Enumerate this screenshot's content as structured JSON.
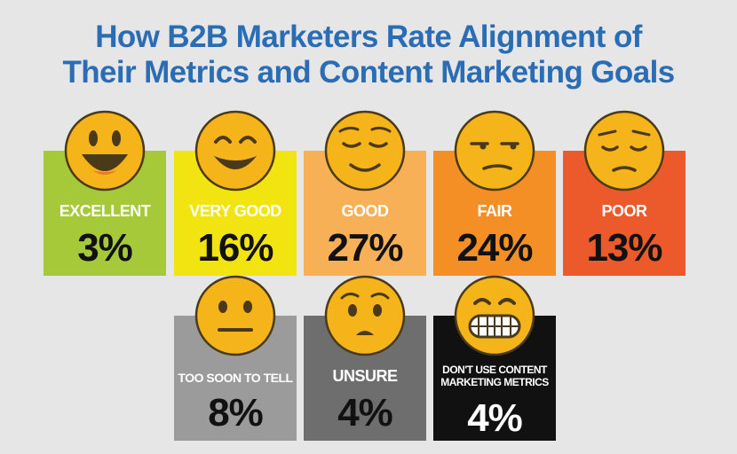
{
  "title_line1": "How B2B Marketers Rate Alignment of",
  "title_line2": "Their Metrics and Content Marketing Goals",
  "colors": {
    "title": "#2a6db5",
    "emoji_fill": "#f4b41a",
    "emoji_stroke": "#4a3a1a"
  },
  "chart_data": {
    "type": "table",
    "title": "How B2B Marketers Rate Alignment of Their Metrics and Content Marketing Goals",
    "categories": [
      "EXCELLENT",
      "VERY GOOD",
      "GOOD",
      "FAIR",
      "POOR",
      "TOO SOON TO TELL",
      "UNSURE",
      "DON'T USE CONTENT MARKETING METRICS"
    ],
    "values": [
      3,
      16,
      27,
      24,
      13,
      8,
      4,
      4
    ],
    "cards": [
      {
        "label": "EXCELLENT",
        "value": "3%",
        "bg": "#a6c93a",
        "text": "#111111",
        "label_color": "#ffffff",
        "face": "grin-big"
      },
      {
        "label": "VERY GOOD",
        "value": "16%",
        "bg": "#f2e411",
        "text": "#111111",
        "label_color": "#ffffff",
        "face": "smile-eyes"
      },
      {
        "label": "GOOD",
        "value": "27%",
        "bg": "#f8b056",
        "text": "#111111",
        "label_color": "#ffffff",
        "face": "relieved"
      },
      {
        "label": "FAIR",
        "value": "24%",
        "bg": "#f38f24",
        "text": "#111111",
        "label_color": "#ffffff",
        "face": "unamused"
      },
      {
        "label": "POOR",
        "value": "13%",
        "bg": "#ec5a2b",
        "text": "#111111",
        "label_color": "#ffffff",
        "face": "pensive"
      },
      {
        "label": "TOO SOON TO TELL",
        "value": "8%",
        "bg": "#9b9b9b",
        "text": "#111111",
        "label_color": "#ffffff",
        "face": "neutral"
      },
      {
        "label": "UNSURE",
        "value": "4%",
        "bg": "#6e6e6e",
        "text": "#111111",
        "label_color": "#ffffff",
        "face": "worried"
      },
      {
        "label": "DON'T USE CONTENT MARKETING METRICS",
        "label_lines": [
          "DON'T USE CONTENT",
          "MARKETING METRICS"
        ],
        "value": "4%",
        "bg": "#111111",
        "text": "#ffffff",
        "label_color": "#ffffff",
        "face": "grimace"
      }
    ]
  }
}
